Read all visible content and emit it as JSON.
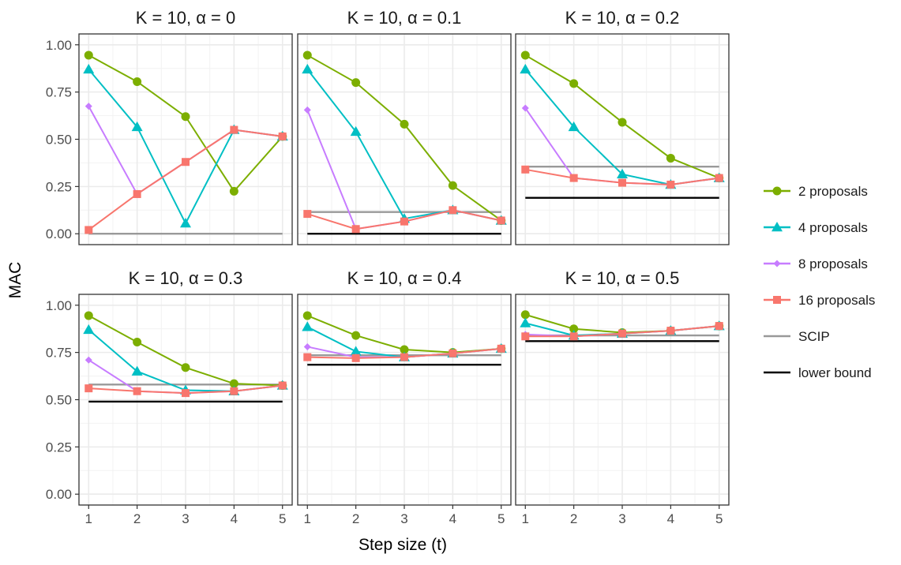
{
  "chart_data": {
    "type": "line",
    "xlabel": "Step size (t)",
    "ylabel": "MAC",
    "x": [
      1,
      2,
      3,
      4,
      5
    ],
    "x_ticks": [
      "1",
      "2",
      "3",
      "4",
      "5"
    ],
    "ylim": [
      0,
      1
    ],
    "y_ticks": [
      "0.00",
      "0.25",
      "0.50",
      "0.75",
      "1.00"
    ],
    "grid": true,
    "legend_position": "right",
    "series_styles": [
      {
        "name": "2 proposals",
        "color": "#7CAE00",
        "marker": "circle"
      },
      {
        "name": "4 proposals",
        "color": "#00BFC4",
        "marker": "triangle"
      },
      {
        "name": "8 proposals",
        "color": "#C77CFF",
        "marker": "diamond"
      },
      {
        "name": "16 proposals",
        "color": "#F8766D",
        "marker": "square"
      }
    ],
    "reference_styles": [
      {
        "name": "SCIP",
        "color": "#999999"
      },
      {
        "name": "lower bound",
        "color": "#000000"
      }
    ],
    "panels": [
      {
        "title": "K = 10, α = 0",
        "series": [
          {
            "name": "2 proposals",
            "values": [
              0.945,
              0.805,
              0.62,
              0.225,
              0.515
            ]
          },
          {
            "name": "4 proposals",
            "values": [
              0.87,
              0.565,
              0.055,
              0.55,
              0.515
            ]
          },
          {
            "name": "8 proposals",
            "values": [
              0.675,
              0.21,
              0.38,
              0.55,
              0.515
            ]
          },
          {
            "name": "16 proposals",
            "values": [
              0.02,
              0.21,
              0.38,
              0.55,
              0.515
            ]
          }
        ],
        "scip": 0.0,
        "lower_bound": null
      },
      {
        "title": "K = 10, α = 0.1",
        "series": [
          {
            "name": "2 proposals",
            "values": [
              0.945,
              0.8,
              0.58,
              0.255,
              0.07
            ]
          },
          {
            "name": "4 proposals",
            "values": [
              0.87,
              0.54,
              0.08,
              0.125,
              0.07
            ]
          },
          {
            "name": "8 proposals",
            "values": [
              0.655,
              0.025,
              0.065,
              0.125,
              0.07
            ]
          },
          {
            "name": "16 proposals",
            "values": [
              0.105,
              0.025,
              0.065,
              0.125,
              0.07
            ]
          }
        ],
        "scip": 0.115,
        "lower_bound": 0.0
      },
      {
        "title": "K = 10, α = 0.2",
        "series": [
          {
            "name": "2 proposals",
            "values": [
              0.945,
              0.795,
              0.59,
              0.4,
              0.295
            ]
          },
          {
            "name": "4 proposals",
            "values": [
              0.87,
              0.565,
              0.315,
              0.26,
              0.295
            ]
          },
          {
            "name": "8 proposals",
            "values": [
              0.665,
              0.295,
              0.27,
              0.26,
              0.295
            ]
          },
          {
            "name": "16 proposals",
            "values": [
              0.34,
              0.295,
              0.27,
              0.26,
              0.295
            ]
          }
        ],
        "scip": 0.355,
        "lower_bound": 0.19
      },
      {
        "title": "K = 10, α = 0.3",
        "series": [
          {
            "name": "2 proposals",
            "values": [
              0.945,
              0.805,
              0.67,
              0.585,
              0.575
            ]
          },
          {
            "name": "4 proposals",
            "values": [
              0.87,
              0.65,
              0.55,
              0.545,
              0.575
            ]
          },
          {
            "name": "8 proposals",
            "values": [
              0.71,
              0.545,
              0.535,
              0.545,
              0.575
            ]
          },
          {
            "name": "16 proposals",
            "values": [
              0.56,
              0.545,
              0.535,
              0.545,
              0.575
            ]
          }
        ],
        "scip": 0.58,
        "lower_bound": 0.49
      },
      {
        "title": "K = 10, α = 0.4",
        "series": [
          {
            "name": "2 proposals",
            "values": [
              0.945,
              0.84,
              0.765,
              0.75,
              0.77
            ]
          },
          {
            "name": "4 proposals",
            "values": [
              0.885,
              0.755,
              0.725,
              0.745,
              0.77
            ]
          },
          {
            "name": "8 proposals",
            "values": [
              0.78,
              0.725,
              0.725,
              0.745,
              0.77
            ]
          },
          {
            "name": "16 proposals",
            "values": [
              0.725,
              0.72,
              0.725,
              0.745,
              0.77
            ]
          }
        ],
        "scip": 0.735,
        "lower_bound": 0.685
      },
      {
        "title": "K = 10, α = 0.5",
        "series": [
          {
            "name": "2 proposals",
            "values": [
              0.95,
              0.875,
              0.855,
              0.865,
              0.89
            ]
          },
          {
            "name": "4 proposals",
            "values": [
              0.905,
              0.84,
              0.85,
              0.865,
              0.89
            ]
          },
          {
            "name": "8 proposals",
            "values": [
              0.845,
              0.835,
              0.85,
              0.865,
              0.89
            ]
          },
          {
            "name": "16 proposals",
            "values": [
              0.835,
              0.835,
              0.85,
              0.865,
              0.89
            ]
          }
        ],
        "scip": 0.84,
        "lower_bound": 0.81
      }
    ]
  }
}
